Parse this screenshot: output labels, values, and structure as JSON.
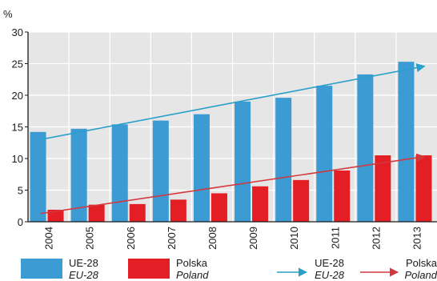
{
  "chart_data": {
    "type": "bar",
    "unit_label": "%",
    "categories": [
      "2004",
      "2005",
      "2006",
      "2007",
      "2008",
      "2009",
      "2010",
      "2011",
      "2012",
      "2013"
    ],
    "series": [
      {
        "name": "UE-28",
        "name_en": "EU-28",
        "color": "#3d9bd4",
        "values": [
          14.2,
          14.7,
          15.4,
          16.0,
          17.0,
          19.0,
          19.6,
          21.5,
          23.3,
          25.3
        ]
      },
      {
        "name": "Polska",
        "name_en": "Poland",
        "color": "#e31e24",
        "values": [
          1.9,
          2.7,
          2.8,
          3.5,
          4.5,
          5.6,
          6.6,
          8.1,
          10.5,
          10.5
        ]
      }
    ],
    "trend_lines": [
      {
        "name": "UE-28",
        "name_en": "EU-28",
        "color": "#2a9fc9",
        "from": {
          "x": "2004",
          "y": 13.0
        },
        "to": {
          "x": "2013",
          "y": 24.6
        }
      },
      {
        "name": "Polska",
        "name_en": "Poland",
        "color": "#d3383d",
        "from": {
          "x": "2004",
          "y": 1.3
        },
        "to": {
          "x": "2013",
          "y": 10.3
        }
      }
    ],
    "ylim": [
      0,
      30
    ],
    "yticks": [
      0,
      5,
      10,
      15,
      20,
      25,
      30
    ],
    "grid": true,
    "legend_position": "bottom",
    "background_color": "#e6e6e6"
  }
}
